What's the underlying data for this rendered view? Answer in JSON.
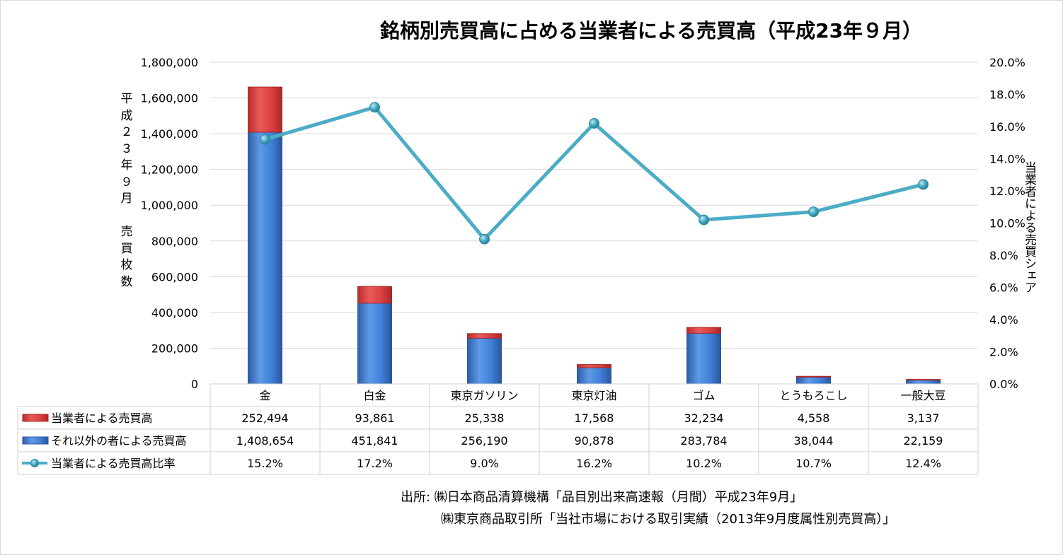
{
  "chart_data": {
    "type": "bar",
    "title": "銘柄別売買高に占める当業者による売買高（平成23年９月）",
    "ylabel": "平成23年9月 売買枚数",
    "ylabel_chars": [
      "平",
      "成",
      "２",
      "３",
      "年",
      "９",
      "月",
      "",
      "売",
      "買",
      "枚",
      "数"
    ],
    "y2label": "当業者による売買シェア",
    "ylim": [
      0,
      1800000
    ],
    "y2lim": [
      0,
      0.2
    ],
    "yticks": [
      "0",
      "200,000",
      "400,000",
      "600,000",
      "800,000",
      "1,000,000",
      "1,200,000",
      "1,400,000",
      "1,600,000",
      "1,800,000"
    ],
    "y2ticks": [
      "0.0%",
      "2.0%",
      "4.0%",
      "6.0%",
      "8.0%",
      "10.0%",
      "12.0%",
      "14.0%",
      "16.0%",
      "18.0%",
      "20.0%"
    ],
    "grid": true,
    "legend": "data-table",
    "categories": [
      "金",
      "白金",
      "東京ガソリン",
      "東京灯油",
      "ゴム",
      "とうもろこし",
      "一般大豆"
    ],
    "series": [
      {
        "name": "当業者による売買高",
        "kind": "bar-stacked-top",
        "color": "#d8403f",
        "values": [
          252494,
          93861,
          25338,
          17568,
          32234,
          4558,
          3137
        ],
        "labels": [
          "252,494",
          "93,861",
          "25,338",
          "17,568",
          "32,234",
          "4,558",
          "3,137"
        ]
      },
      {
        "name": "それ以外の者による売買高",
        "kind": "bar-stacked-bottom",
        "color": "#3f7fd6",
        "values": [
          1408654,
          451841,
          256190,
          90878,
          283784,
          38044,
          22159
        ],
        "labels": [
          "1,408,654",
          "451,841",
          "256,190",
          "90,878",
          "283,784",
          "38,044",
          "22,159"
        ]
      },
      {
        "name": "当業者による売買高比率",
        "kind": "line-secondary",
        "color": "#4bacc6",
        "values": [
          0.152,
          0.172,
          0.09,
          0.162,
          0.102,
          0.107,
          0.124
        ],
        "labels": [
          "15.2%",
          "17.2%",
          "9.0%",
          "16.2%",
          "10.2%",
          "10.7%",
          "12.4%"
        ]
      }
    ]
  },
  "source": {
    "line1": "出所: ㈱日本商品清算機構「品目別出来高速報（月間）平成23年9月」",
    "line2": "㈱東京商品取引所「当社市場における取引実績（2013年9月度属性別売買高）」"
  }
}
